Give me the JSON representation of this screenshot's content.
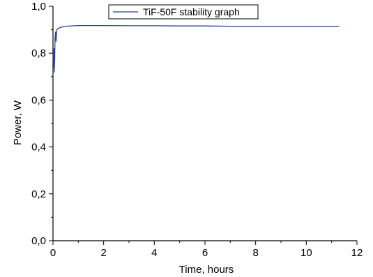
{
  "chart_data": {
    "type": "line",
    "xlabel": "Time, hours",
    "ylabel": "Power, W",
    "xlim": [
      0,
      12
    ],
    "ylim": [
      0.0,
      1.0
    ],
    "x_ticks": [
      0,
      2,
      4,
      6,
      8,
      10,
      12
    ],
    "x_tick_labels": [
      "0",
      "2",
      "4",
      "6",
      "8",
      "10",
      "12"
    ],
    "y_ticks": [
      0.0,
      0.2,
      0.4,
      0.6,
      0.8,
      1.0
    ],
    "y_tick_labels": [
      "0,0",
      "0,2",
      "0,4",
      "0,6",
      "0,8",
      "1,0"
    ],
    "grid": false,
    "legend_position": "top-center",
    "series": [
      {
        "name": "TiF-50F stability graph",
        "color": "#2b3f8f",
        "x": [
          0.0,
          0.02,
          0.04,
          0.05,
          0.07,
          0.08,
          0.1,
          0.12,
          0.15,
          0.2,
          0.3,
          0.5,
          1.0,
          2.0,
          3.0,
          4.0,
          5.0,
          6.0,
          7.0,
          8.0,
          9.0,
          10.0,
          11.0,
          11.3
        ],
        "y": [
          0.8,
          0.74,
          0.82,
          0.72,
          0.78,
          0.86,
          0.89,
          0.85,
          0.9,
          0.905,
          0.91,
          0.915,
          0.918,
          0.918,
          0.917,
          0.917,
          0.916,
          0.916,
          0.915,
          0.915,
          0.915,
          0.915,
          0.914,
          0.914
        ]
      }
    ]
  }
}
